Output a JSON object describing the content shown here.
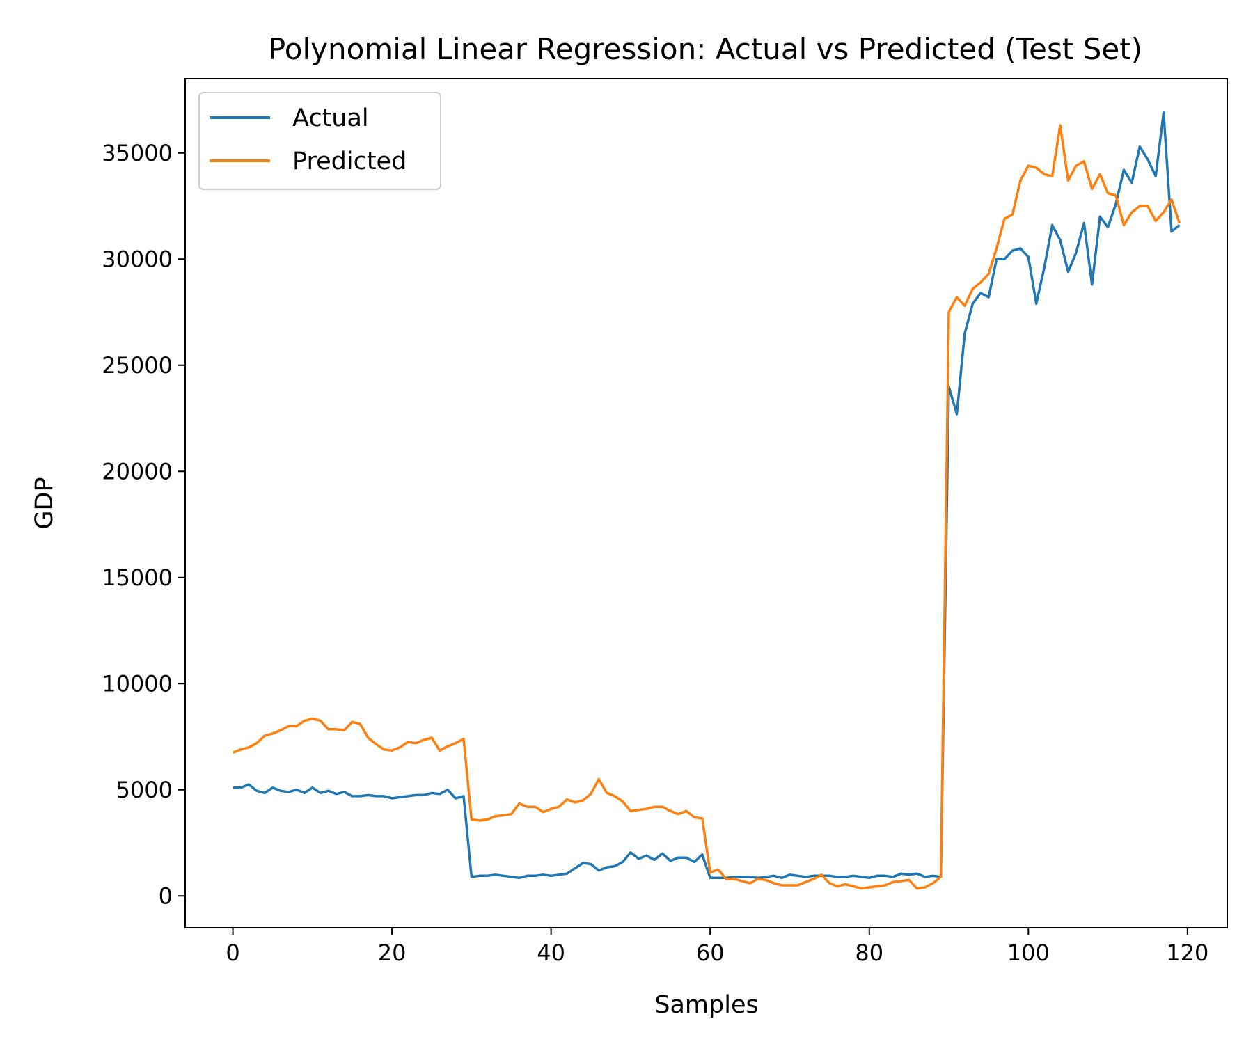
{
  "chart_data": {
    "type": "line",
    "title": "Polynomial Linear Regression: Actual vs Predicted (Test Set)",
    "xlabel": "Samples",
    "ylabel": "GDP",
    "xlim": [
      -6,
      125
    ],
    "ylim": [
      -1500,
      38500
    ],
    "xticks": [
      0,
      20,
      40,
      60,
      80,
      100,
      120
    ],
    "yticks": [
      0,
      5000,
      10000,
      15000,
      20000,
      25000,
      30000,
      35000
    ],
    "grid": false,
    "legend_position": "top-left",
    "series": [
      {
        "name": "Actual",
        "color": "#1f77b4",
        "values": [
          5100,
          5100,
          5250,
          4950,
          4850,
          5100,
          4950,
          4900,
          5000,
          4850,
          5100,
          4850,
          4950,
          4800,
          4900,
          4700,
          4700,
          4750,
          4700,
          4700,
          4600,
          4650,
          4700,
          4750,
          4750,
          4850,
          4800,
          5000,
          4600,
          4700,
          900,
          950,
          950,
          1000,
          950,
          900,
          850,
          950,
          950,
          1000,
          950,
          1000,
          1050,
          1300,
          1550,
          1500,
          1200,
          1350,
          1400,
          1600,
          2050,
          1750,
          1900,
          1700,
          2000,
          1650,
          1800,
          1800,
          1600,
          1950,
          850,
          850,
          850,
          900,
          900,
          900,
          850,
          900,
          950,
          850,
          1000,
          950,
          900,
          950,
          950,
          950,
          900,
          900,
          950,
          900,
          850,
          950,
          950,
          900,
          1050,
          1000,
          1050,
          900,
          950,
          900,
          24000,
          22700,
          26500,
          27900,
          28400,
          28200,
          30000,
          30000,
          30400,
          30500,
          30100,
          27900,
          29600,
          31600,
          30900,
          29400,
          30300,
          31700,
          28800,
          32000,
          31500,
          32600,
          34200,
          33600,
          35300,
          34700,
          33900,
          36900,
          31300,
          31600
        ]
      },
      {
        "name": "Predicted",
        "color": "#ff7f0e",
        "values": [
          6750,
          6900,
          7000,
          7200,
          7550,
          7650,
          7800,
          8000,
          8000,
          8250,
          8350,
          8250,
          7850,
          7850,
          7800,
          8200,
          8100,
          7450,
          7150,
          6900,
          6850,
          7000,
          7250,
          7200,
          7350,
          7450,
          6850,
          7050,
          7200,
          7400,
          3600,
          3550,
          3600,
          3750,
          3800,
          3850,
          4350,
          4200,
          4200,
          3950,
          4100,
          4200,
          4550,
          4400,
          4500,
          4800,
          5500,
          4850,
          4700,
          4450,
          4000,
          4050,
          4100,
          4200,
          4200,
          4000,
          3850,
          4000,
          3700,
          3650,
          1100,
          1250,
          800,
          800,
          700,
          600,
          800,
          750,
          600,
          500,
          500,
          500,
          650,
          800,
          1000,
          600,
          450,
          550,
          450,
          350,
          400,
          450,
          500,
          650,
          700,
          750,
          350,
          400,
          600,
          900,
          27500,
          28200,
          27800,
          28600,
          28900,
          29300,
          30500,
          31900,
          32100,
          33700,
          34400,
          34300,
          34000,
          33900,
          36300,
          33700,
          34400,
          34600,
          33300,
          34000,
          33100,
          33000,
          31600,
          32200,
          32500,
          32500,
          31800,
          32200,
          32800,
          31700
        ]
      }
    ]
  }
}
